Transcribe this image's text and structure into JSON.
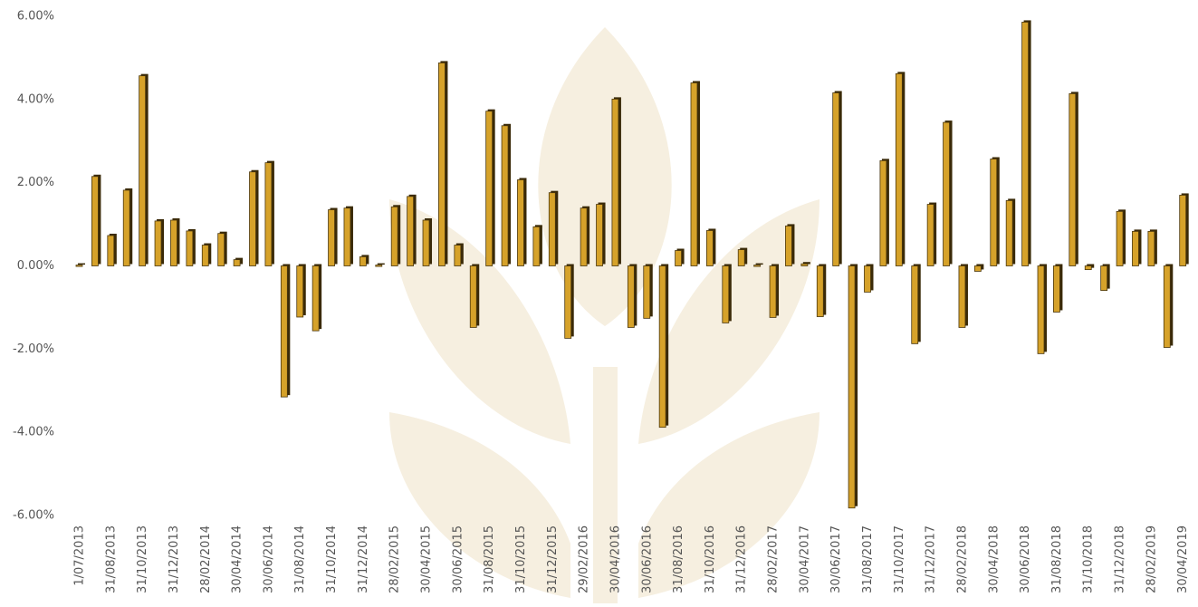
{
  "chart_data": {
    "type": "bar",
    "categories": [
      "1/07/2013",
      null,
      "31/08/2013",
      null,
      "31/10/2013",
      null,
      "31/12/2013",
      null,
      "28/02/2014",
      null,
      "30/04/2014",
      null,
      "30/06/2014",
      null,
      "31/08/2014",
      null,
      "31/10/2014",
      null,
      "31/12/2014",
      null,
      "28/02/2015",
      null,
      "30/04/2015",
      null,
      "30/06/2015",
      null,
      "31/08/2015",
      null,
      "31/10/2015",
      null,
      "31/12/2015",
      null,
      "29/02/2016",
      null,
      "30/04/2016",
      null,
      "30/06/2016",
      null,
      "31/08/2016",
      null,
      "31/10/2016",
      null,
      "31/12/2016",
      null,
      "28/02/2017",
      null,
      "30/04/2017",
      null,
      "30/06/2017",
      null,
      "31/08/2017",
      null,
      "31/10/2017",
      null,
      "31/12/2017",
      null,
      "28/02/2018",
      null,
      "30/04/2018",
      null,
      "30/06/2018",
      null,
      "31/08/2018",
      null,
      "31/10/2018",
      null,
      "31/12/2018",
      null,
      "28/02/2019",
      null,
      "30/04/2019"
    ],
    "values": [
      0.02,
      2.15,
      0.73,
      1.82,
      4.57,
      1.08,
      1.1,
      0.84,
      0.5,
      0.78,
      0.15,
      2.26,
      2.48,
      -3.15,
      -1.23,
      -1.56,
      1.35,
      1.39,
      0.22,
      0.02,
      1.42,
      1.67,
      1.1,
      4.88,
      0.5,
      -1.48,
      3.72,
      3.37,
      2.07,
      0.94,
      1.76,
      -1.74,
      1.39,
      1.48,
      4.01,
      -1.48,
      -1.26,
      -3.88,
      0.37,
      4.4,
      0.85,
      -1.37,
      0.39,
      0.02,
      -1.24,
      0.96,
      0.05,
      -1.22,
      4.16,
      -5.82,
      -0.63,
      2.53,
      4.62,
      -1.87,
      1.48,
      3.45,
      -1.48,
      -0.13,
      2.57,
      1.57,
      5.86,
      -2.11,
      -1.11,
      4.14,
      -0.09,
      -0.59,
      1.31,
      0.83,
      0.83,
      -1.96,
      1.7
    ],
    "color": "#d6a22a",
    "ylim": [
      -6,
      6
    ],
    "yticks": [
      {
        "value": -6,
        "label": "-6.00%"
      },
      {
        "value": -4,
        "label": "-4.00%"
      },
      {
        "value": -2,
        "label": "-2.00%"
      },
      {
        "value": 0,
        "label": "0.00%"
      },
      {
        "value": 2,
        "label": "2.00%"
      },
      {
        "value": 4,
        "label": "4.00%"
      },
      {
        "value": 6,
        "label": "6.00%"
      }
    ],
    "grid": false
  }
}
